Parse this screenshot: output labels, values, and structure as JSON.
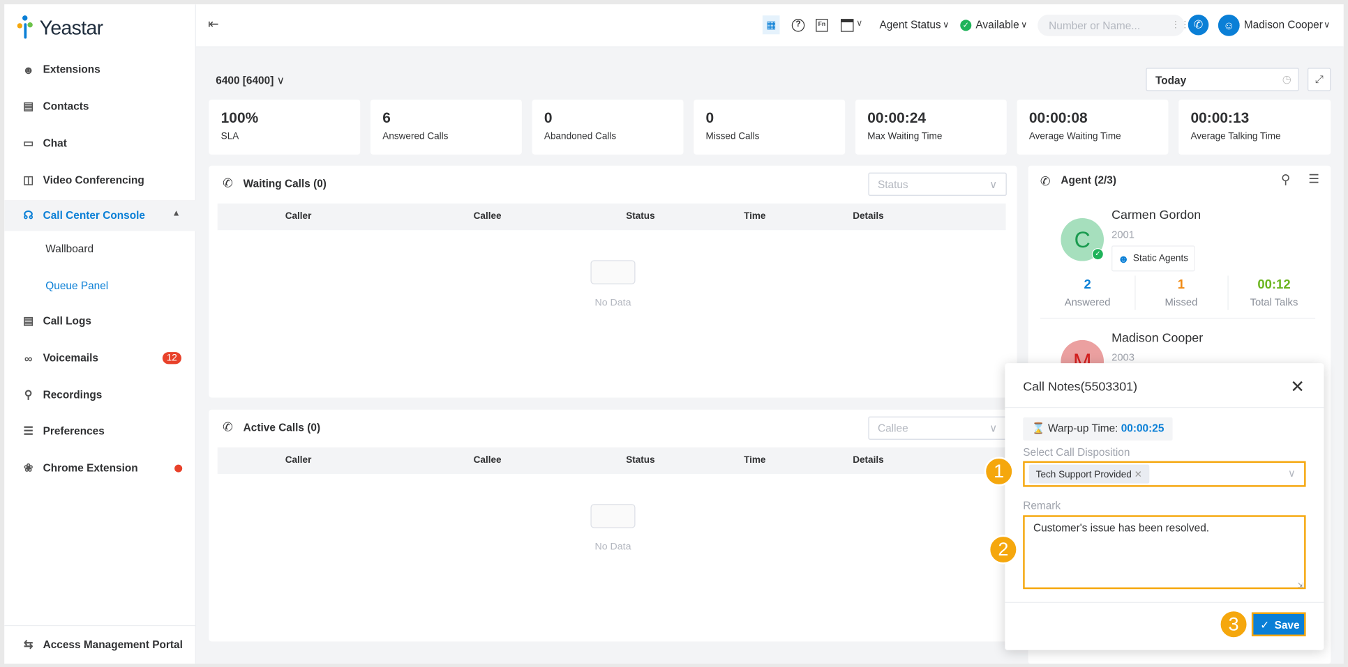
{
  "brand": {
    "name": "Yeastar"
  },
  "sidebar": {
    "items": [
      {
        "label": "Extensions",
        "icon": "extensions-icon"
      },
      {
        "label": "Contacts",
        "icon": "contacts-icon"
      },
      {
        "label": "Chat",
        "icon": "chat-icon"
      },
      {
        "label": "Video Conferencing",
        "icon": "video-conferencing-icon"
      },
      {
        "label": "Call Center Console",
        "icon": "headset-icon",
        "expanded": true,
        "active": true
      },
      {
        "label": "Call Logs",
        "icon": "call-logs-icon"
      },
      {
        "label": "Voicemails",
        "icon": "voicemail-icon",
        "badge": "12"
      },
      {
        "label": "Recordings",
        "icon": "microphone-icon"
      },
      {
        "label": "Preferences",
        "icon": "preferences-icon"
      },
      {
        "label": "Chrome Extension",
        "icon": "puzzle-icon",
        "dot": true
      }
    ],
    "subitems": [
      {
        "label": "Wallboard"
      },
      {
        "label": "Queue Panel",
        "active": true
      }
    ],
    "footer": "Access Management Portal"
  },
  "header": {
    "agent_status": "Agent Status",
    "availability": "Available",
    "search_placeholder": "Number or Name...",
    "user": "Madison Cooper"
  },
  "queue": {
    "selected": "6400 [6400]",
    "date_range": "Today"
  },
  "stats": [
    {
      "value": "100%",
      "label": "SLA"
    },
    {
      "value": "6",
      "label": "Answered Calls"
    },
    {
      "value": "0",
      "label": "Abandoned Calls"
    },
    {
      "value": "0",
      "label": "Missed Calls"
    },
    {
      "value": "00:00:24",
      "label": "Max Waiting Time"
    },
    {
      "value": "00:00:08",
      "label": "Average Waiting Time"
    },
    {
      "value": "00:00:13",
      "label": "Average Talking Time"
    }
  ],
  "waiting": {
    "title": "Waiting Calls (0)",
    "filter_placeholder": "Status",
    "columns": [
      "Caller",
      "Callee",
      "Status",
      "Time",
      "Details"
    ],
    "empty": "No Data"
  },
  "active": {
    "title": "Active Calls (0)",
    "filter_placeholder": "Callee",
    "columns": [
      "Caller",
      "Callee",
      "Status",
      "Time",
      "Details"
    ],
    "empty": "No Data"
  },
  "agents": {
    "title": "Agent (2/3)",
    "list": [
      {
        "initial": "C",
        "name": "Carmen Gordon",
        "ext": "2001",
        "tag": "Static Agents",
        "answered": "2",
        "answered_label": "Answered",
        "missed": "1",
        "missed_label": "Missed",
        "talk": "00:12",
        "talk_label": "Total Talks",
        "avatar_color": "#a6dfbd"
      },
      {
        "initial": "M",
        "name": "Madison Cooper",
        "ext": "2003",
        "avatar_color": "#eba0a0"
      }
    ]
  },
  "dialog": {
    "title": "Call Notes(5503301)",
    "wrapup_label": "Warp-up Time:",
    "wrapup_value": "00:00:25",
    "disposition_label": "Select Call Disposition",
    "disposition_tag": "Tech Support Provided",
    "remark_label": "Remark",
    "remark_value": "Customer's issue has been resolved.",
    "save": "Save"
  },
  "markers": [
    "1",
    "2",
    "3"
  ],
  "colors": {
    "accent": "#0a7fd6",
    "highlight": "#f5a70d",
    "badge": "#e8412a",
    "available": "#1fb35a"
  }
}
